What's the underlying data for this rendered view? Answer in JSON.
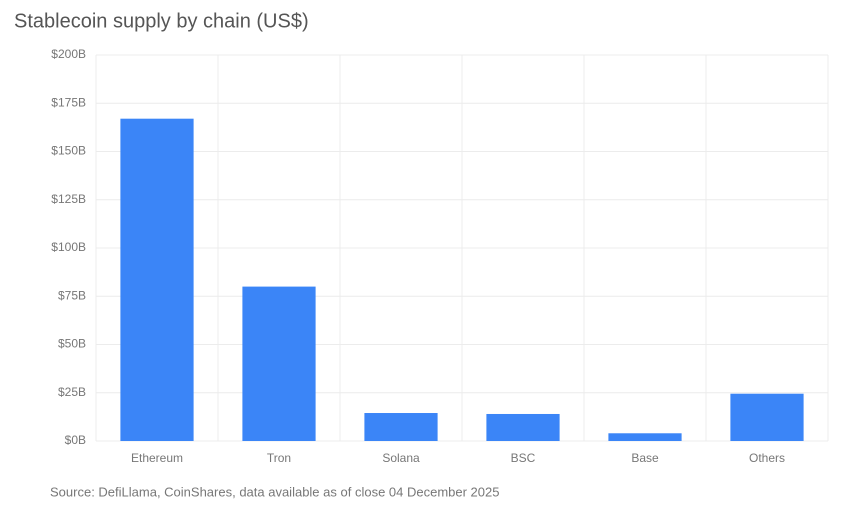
{
  "chart_data": {
    "type": "bar",
    "title": "Stablecoin supply by chain (US$)",
    "categories": [
      "Ethereum",
      "Tron",
      "Solana",
      "BSC",
      "Base",
      "Others"
    ],
    "values": [
      167,
      80,
      14.5,
      14,
      4,
      24.5
    ],
    "color": "#3b85f7",
    "ylim": [
      0,
      200
    ],
    "yticks": [
      {
        "value": 0,
        "label": "$0B"
      },
      {
        "value": 25,
        "label": "$25B"
      },
      {
        "value": 50,
        "label": "$50B"
      },
      {
        "value": 75,
        "label": "$75B"
      },
      {
        "value": 100,
        "label": "$100B"
      },
      {
        "value": 125,
        "label": "$125B"
      },
      {
        "value": 150,
        "label": "$150B"
      },
      {
        "value": 175,
        "label": "$175B"
      },
      {
        "value": 200,
        "label": "$200B"
      }
    ],
    "grid": true,
    "source": "Source: DefiLlama, CoinShares, data available as of close 04 December 2025"
  }
}
